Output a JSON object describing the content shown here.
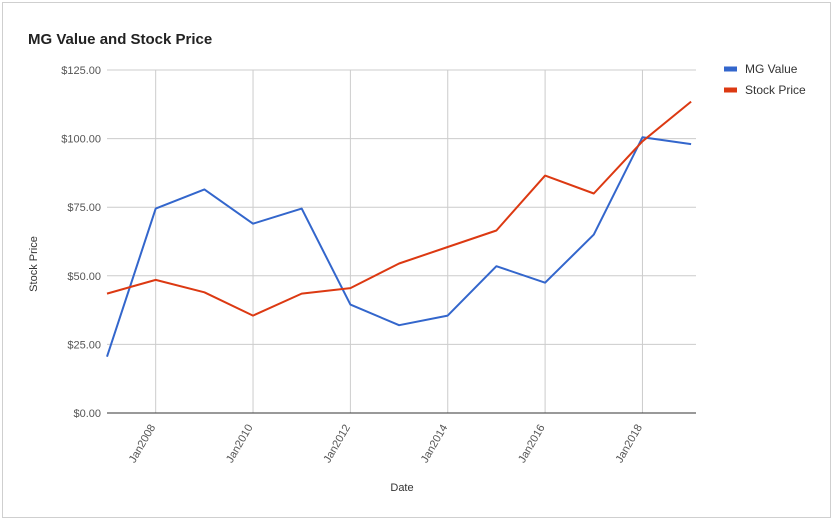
{
  "chart_data": {
    "type": "line",
    "title": "MG Value and Stock Price",
    "xlabel": "Date",
    "ylabel": "Stock Price",
    "x": [
      2007,
      2008,
      2009,
      2010,
      2011,
      2012,
      2013,
      2014,
      2015,
      2016,
      2017,
      2018,
      2019
    ],
    "x_tick_values": [
      2008,
      2010,
      2012,
      2014,
      2016,
      2018
    ],
    "x_tick_labels": [
      "Jan2008",
      "Jan2010",
      "Jan2012",
      "Jan2014",
      "Jan2016",
      "Jan2018"
    ],
    "y_tick_values": [
      0,
      25,
      50,
      75,
      100,
      125
    ],
    "y_tick_labels": [
      "$0.00",
      "$25.00",
      "$50.00",
      "$75.00",
      "$100.00",
      "$125.00"
    ],
    "xlim": [
      2007,
      2019.1
    ],
    "ylim": [
      0,
      125
    ],
    "grid": true,
    "legend_position": "right",
    "series": [
      {
        "name": "MG Value",
        "color": "#3366cc",
        "values": [
          20.5,
          74.5,
          81.5,
          69,
          74.5,
          39.5,
          32,
          35.5,
          53.5,
          47.5,
          65,
          100.5,
          98
        ]
      },
      {
        "name": "Stock Price",
        "color": "#dc3912",
        "values": [
          43.5,
          48.5,
          44,
          35.5,
          43.5,
          45.5,
          54.5,
          60.5,
          66.5,
          86.5,
          80,
          99,
          113.5
        ]
      }
    ]
  }
}
